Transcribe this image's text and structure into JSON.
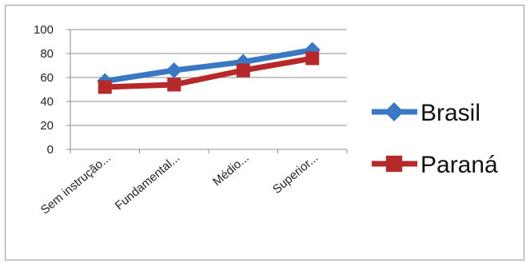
{
  "chart_data": {
    "type": "line",
    "categories": [
      "Sem instrução...",
      "Fundamental...",
      "Médio...",
      "Superior..."
    ],
    "series": [
      {
        "name": "Brasil",
        "values": [
          57,
          66,
          73,
          83
        ],
        "color": "#3a78c3",
        "marker": "diamond"
      },
      {
        "name": "Paraná",
        "values": [
          52,
          54,
          66,
          76
        ],
        "color": "#b5292b",
        "marker": "square"
      }
    ],
    "ylim": [
      0,
      100
    ],
    "yticks": [
      0,
      20,
      40,
      60,
      80,
      100
    ],
    "grid": true,
    "legend_position": "right"
  }
}
